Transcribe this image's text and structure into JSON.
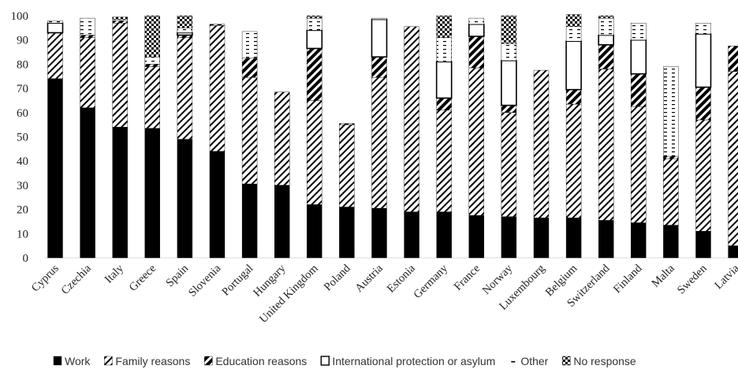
{
  "chart_data": {
    "type": "bar",
    "stacked": true,
    "title": "",
    "xlabel": "",
    "ylabel": "",
    "ylim": [
      0,
      100
    ],
    "yticks": [
      0,
      10,
      20,
      30,
      40,
      50,
      60,
      70,
      80,
      90,
      100
    ],
    "grid": false,
    "legend_position": "bottom",
    "categories": [
      "Cyprus",
      "Czechia",
      "Italy",
      "Greece",
      "Spain",
      "Slovenia",
      "Portugal",
      "Hungary",
      "United Kingdom",
      "Poland",
      "Austria",
      "Estonia",
      "Germany",
      "France",
      "Norway",
      "Luxembourg",
      "Belgium",
      "Switzerland",
      "Finland",
      "Malta",
      "Sweden",
      "Latvia"
    ],
    "series": [
      {
        "name": "Work",
        "pattern": "solid",
        "values": [
          74,
          62,
          54,
          53.5,
          49,
          44,
          30.5,
          30,
          22,
          21,
          20.5,
          19,
          19,
          17.5,
          17,
          16.5,
          16.5,
          15.5,
          14.5,
          13.5,
          11,
          5
        ]
      },
      {
        "name": "Family reasons",
        "pattern": "wide-diagonal",
        "values": [
          19,
          29,
          43,
          25.5,
          42,
          52,
          44,
          38.5,
          43,
          34,
          54,
          76.5,
          42,
          61,
          43,
          61,
          47,
          62.5,
          48,
          27.5,
          46,
          72
        ]
      },
      {
        "name": "Education reasons",
        "pattern": "bold-diagonal",
        "values": [
          0,
          1,
          1,
          1,
          1,
          0.5,
          8,
          0,
          21.5,
          0.5,
          8.5,
          0,
          5,
          13,
          3,
          0,
          6,
          10,
          13.5,
          1,
          13.5,
          10.5
        ]
      },
      {
        "name": "International protection or asylum",
        "pattern": "outline",
        "values": [
          4,
          0,
          0,
          0,
          1,
          0,
          0,
          0,
          7.5,
          0,
          15.5,
          0,
          15,
          5,
          18.5,
          0,
          20,
          4,
          14,
          0,
          22,
          0
        ]
      },
      {
        "name": "Other",
        "pattern": "dashes",
        "values": [
          1,
          7,
          0.5,
          3,
          2,
          0,
          11,
          0,
          5,
          0,
          0.5,
          0,
          10,
          2.5,
          7,
          0,
          6,
          7,
          7,
          37,
          4.5,
          0
        ]
      },
      {
        "name": "No response",
        "pattern": "checker",
        "values": [
          0,
          0,
          1,
          17,
          5,
          0,
          0,
          0,
          1,
          0,
          0,
          0,
          9,
          0,
          11.5,
          0,
          5,
          1,
          0,
          0,
          0,
          0
        ]
      }
    ]
  },
  "colors": {
    "bar_fill": "#000000",
    "axis": "#d9d9d9",
    "background": "#ffffff"
  }
}
